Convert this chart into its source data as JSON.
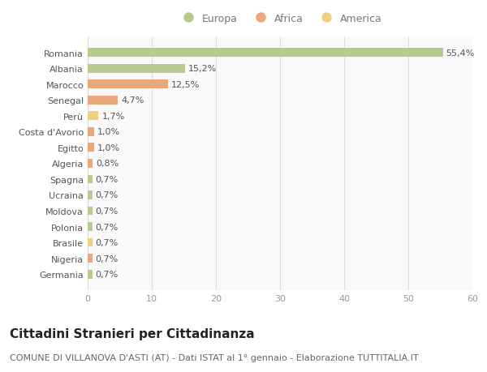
{
  "categories": [
    "Romania",
    "Albania",
    "Marocco",
    "Senegal",
    "Perù",
    "Costa d'Avorio",
    "Egitto",
    "Algeria",
    "Spagna",
    "Ucraina",
    "Moldova",
    "Polonia",
    "Brasile",
    "Nigeria",
    "Germania"
  ],
  "values": [
    55.4,
    15.2,
    12.5,
    4.7,
    1.7,
    1.0,
    1.0,
    0.8,
    0.7,
    0.7,
    0.7,
    0.7,
    0.7,
    0.7,
    0.7
  ],
  "labels": [
    "55,4%",
    "15,2%",
    "12,5%",
    "4,7%",
    "1,7%",
    "1,0%",
    "1,0%",
    "0,8%",
    "0,7%",
    "0,7%",
    "0,7%",
    "0,7%",
    "0,7%",
    "0,7%",
    "0,7%"
  ],
  "continents": [
    "Europa",
    "Europa",
    "Africa",
    "Africa",
    "America",
    "Africa",
    "Africa",
    "Africa",
    "Europa",
    "Europa",
    "Europa",
    "Europa",
    "America",
    "Africa",
    "Europa"
  ],
  "colors": {
    "Europa": "#b5cc8e",
    "Africa": "#e8a87c",
    "America": "#f0d080"
  },
  "legend_order": [
    "Europa",
    "Africa",
    "America"
  ],
  "title": "Cittadini Stranieri per Cittadinanza",
  "subtitle": "COMUNE DI VILLANOVA D'ASTI (AT) - Dati ISTAT al 1° gennaio - Elaborazione TUTTITALIA.IT",
  "xlim": [
    0,
    60
  ],
  "xticks": [
    0,
    10,
    20,
    30,
    40,
    50,
    60
  ],
  "background_color": "#ffffff",
  "plot_bg_color": "#f9f9f9",
  "grid_color": "#dddddd",
  "bar_height": 0.55,
  "title_fontsize": 11,
  "subtitle_fontsize": 8,
  "label_fontsize": 8,
  "tick_fontsize": 8,
  "legend_fontsize": 9
}
